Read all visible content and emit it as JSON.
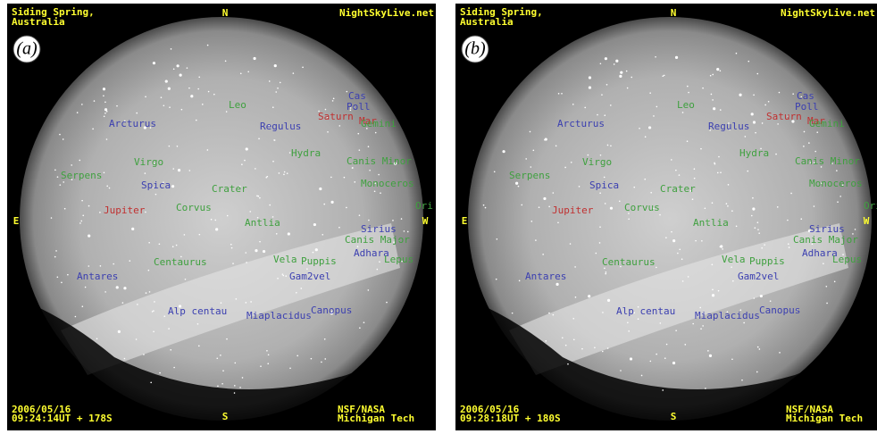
{
  "overlay": {
    "site_line1": "Siding Spring,",
    "site_line2": "Australia",
    "north": "N",
    "east": "E",
    "west": "W",
    "south": "S",
    "website": "NightSkyLive.net",
    "credit_line1": "NSF/NASA",
    "credit_line2": "Michigan Tech",
    "date": "2006/05/16"
  },
  "panels": [
    {
      "label": "(a)",
      "time": "09:24:14UT + 178S"
    },
    {
      "label": "(b)",
      "time": "09:28:18UT + 180S"
    }
  ],
  "star_labels": [
    {
      "name": "Arcturus",
      "color": "#3b3fb0"
    },
    {
      "name": "Leo",
      "color": "#3fa03f"
    },
    {
      "name": "Regulus",
      "color": "#3b3fb0"
    },
    {
      "name": "Saturn",
      "color": "#c03030"
    },
    {
      "name": "Mar",
      "color": "#c03030"
    },
    {
      "name": "Cas",
      "color": "#3b3fb0"
    },
    {
      "name": "Poll",
      "color": "#3b3fb0"
    },
    {
      "name": "Gemini",
      "color": "#3fa03f"
    },
    {
      "name": "Hydra",
      "color": "#3fa03f"
    },
    {
      "name": "Canis Minor",
      "color": "#3fa03f"
    },
    {
      "name": "Virgo",
      "color": "#3fa03f"
    },
    {
      "name": "Serpens",
      "color": "#3fa03f"
    },
    {
      "name": "Spica",
      "color": "#3b3fb0"
    },
    {
      "name": "Crater",
      "color": "#3fa03f"
    },
    {
      "name": "Monoceros",
      "color": "#3fa03f"
    },
    {
      "name": "Ori",
      "color": "#3fa03f"
    },
    {
      "name": "Jupiter",
      "color": "#c03030"
    },
    {
      "name": "Corvus",
      "color": "#3fa03f"
    },
    {
      "name": "Antlia",
      "color": "#3fa03f"
    },
    {
      "name": "Sirius",
      "color": "#3b3fb0"
    },
    {
      "name": "Canis Major",
      "color": "#3fa03f"
    },
    {
      "name": "Adhara",
      "color": "#3b3fb0"
    },
    {
      "name": "Lepus",
      "color": "#3fa03f"
    },
    {
      "name": "Vela",
      "color": "#3fa03f"
    },
    {
      "name": "Puppis",
      "color": "#3fa03f"
    },
    {
      "name": "Centaurus",
      "color": "#3fa03f"
    },
    {
      "name": "Antares",
      "color": "#3b3fb0"
    },
    {
      "name": "Gam2vel",
      "color": "#3b3fb0"
    },
    {
      "name": "Alp centau",
      "color": "#3b3fb0"
    },
    {
      "name": "Miaplacidus",
      "color": "#3b3fb0"
    },
    {
      "name": "Canopus",
      "color": "#3b3fb0"
    }
  ]
}
